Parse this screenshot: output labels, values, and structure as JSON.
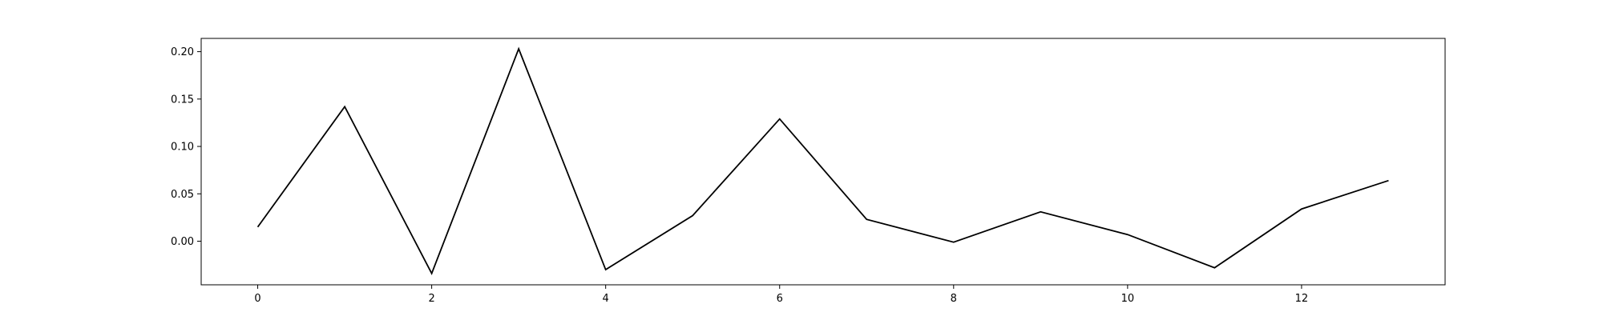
{
  "chart_data": {
    "type": "line",
    "title": "",
    "xlabel": "",
    "ylabel": "",
    "x": [
      0,
      1,
      2,
      3,
      4,
      5,
      6,
      7,
      8,
      9,
      10,
      11,
      12,
      13
    ],
    "series": [
      {
        "values": [
          0.015,
          0.142,
          -0.034,
          0.203,
          -0.03,
          0.027,
          0.129,
          0.023,
          -0.001,
          0.031,
          0.007,
          -0.028,
          0.034,
          0.064
        ],
        "color": "#000000"
      }
    ],
    "xlim": [
      -0.65,
      13.65
    ],
    "ylim": [
      -0.046,
      0.214
    ],
    "xticks": [
      0,
      2,
      4,
      6,
      8,
      10,
      12
    ],
    "xtick_labels": [
      "0",
      "2",
      "4",
      "6",
      "8",
      "10",
      "12"
    ],
    "yticks": [
      0.0,
      0.05,
      0.1,
      0.15,
      0.2
    ],
    "ytick_labels": [
      "0.00",
      "0.05",
      "0.10",
      "0.15",
      "0.20"
    ],
    "grid": false,
    "legend": "none"
  }
}
